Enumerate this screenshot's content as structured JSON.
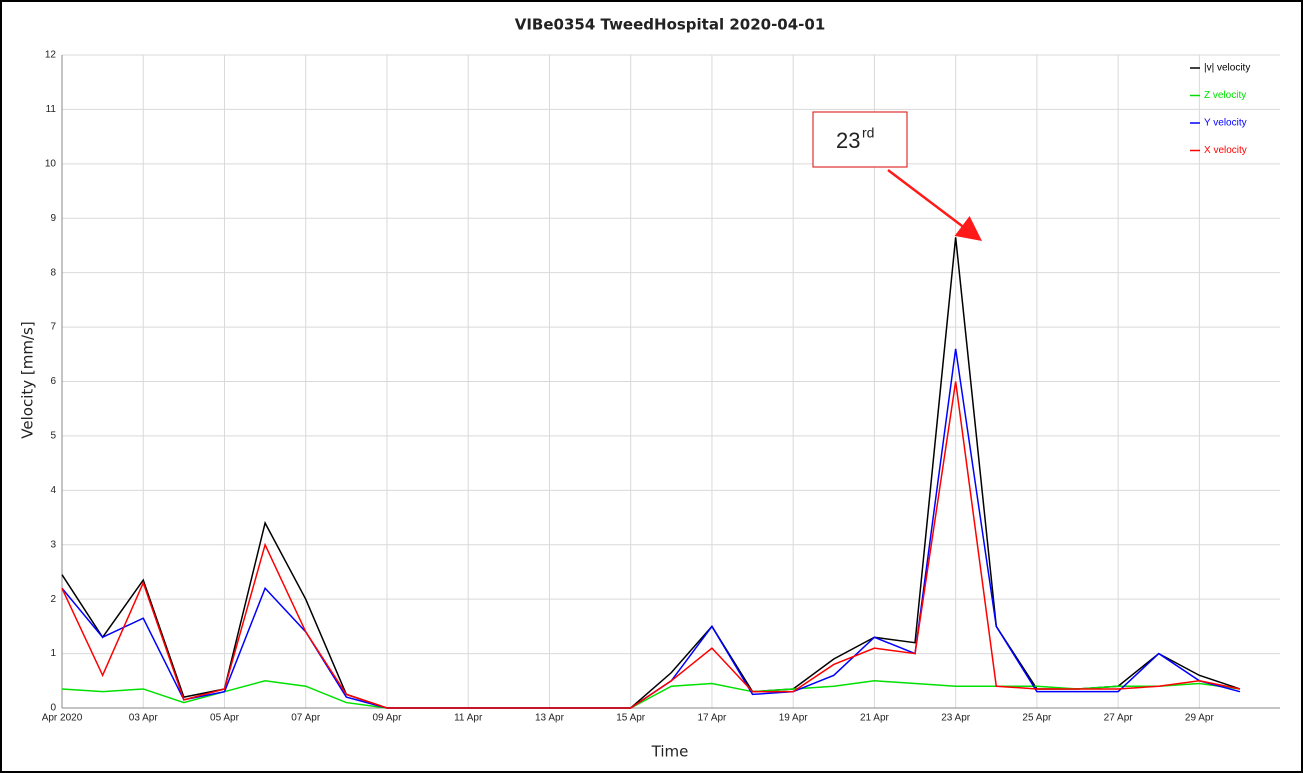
{
  "chart_data": {
    "type": "line",
    "title": "VIBe0354 TweedHospital 2020-04-01",
    "xlabel": "Time",
    "ylabel": "Velocity [mm/s]",
    "x": [
      "2020-04-01",
      "2020-04-02",
      "2020-04-03",
      "2020-04-04",
      "2020-04-05",
      "2020-04-06",
      "2020-04-07",
      "2020-04-08",
      "2020-04-09",
      "2020-04-10",
      "2020-04-11",
      "2020-04-12",
      "2020-04-13",
      "2020-04-14",
      "2020-04-15",
      "2020-04-16",
      "2020-04-17",
      "2020-04-18",
      "2020-04-19",
      "2020-04-20",
      "2020-04-21",
      "2020-04-22",
      "2020-04-23",
      "2020-04-24",
      "2020-04-25",
      "2020-04-26",
      "2020-04-27",
      "2020-04-28",
      "2020-04-29",
      "2020-04-30"
    ],
    "series": [
      {
        "name": "|v| velocity",
        "color": "#000000",
        "values": [
          2.45,
          1.3,
          2.35,
          0.2,
          0.35,
          3.4,
          2.0,
          0.25,
          0,
          0,
          0,
          0,
          0,
          0,
          0,
          0.65,
          1.5,
          0.3,
          0.35,
          0.9,
          1.3,
          1.2,
          8.65,
          1.5,
          0.35,
          0.35,
          0.4,
          1.0,
          0.6,
          0.35
        ]
      },
      {
        "name": "Z velocity",
        "color": "#00e000",
        "values": [
          0.35,
          0.3,
          0.35,
          0.1,
          0.3,
          0.5,
          0.4,
          0.1,
          0,
          0,
          0,
          0,
          0,
          0,
          0,
          0.4,
          0.45,
          0.3,
          0.35,
          0.4,
          0.5,
          0.45,
          0.4,
          0.4,
          0.4,
          0.35,
          0.4,
          0.4,
          0.45,
          0.35
        ]
      },
      {
        "name": "Y velocity",
        "color": "#0000ff",
        "values": [
          2.2,
          1.3,
          1.65,
          0.15,
          0.3,
          2.2,
          1.4,
          0.2,
          0,
          0,
          0,
          0,
          0,
          0,
          0,
          0.5,
          1.5,
          0.25,
          0.3,
          0.6,
          1.3,
          1.0,
          6.6,
          1.5,
          0.3,
          0.3,
          0.3,
          1.0,
          0.5,
          0.3
        ]
      },
      {
        "name": "X velocity",
        "color": "#ff0000",
        "values": [
          2.2,
          0.6,
          2.3,
          0.15,
          0.35,
          3.0,
          1.4,
          0.25,
          0,
          0,
          0,
          0,
          0,
          0,
          0,
          0.5,
          1.1,
          0.3,
          0.3,
          0.8,
          1.1,
          1.0,
          6.0,
          0.4,
          0.35,
          0.35,
          0.35,
          0.4,
          0.5,
          0.35
        ]
      }
    ],
    "xlim": [
      "2020-04-01",
      "2020-04-30"
    ],
    "xticks": [
      {
        "value": "2020-04-01",
        "label": "Apr 2020"
      },
      {
        "value": "2020-04-03",
        "label": "03 Apr"
      },
      {
        "value": "2020-04-05",
        "label": "05 Apr"
      },
      {
        "value": "2020-04-07",
        "label": "07 Apr"
      },
      {
        "value": "2020-04-09",
        "label": "09 Apr"
      },
      {
        "value": "2020-04-11",
        "label": "11 Apr"
      },
      {
        "value": "2020-04-13",
        "label": "13 Apr"
      },
      {
        "value": "2020-04-15",
        "label": "15 Apr"
      },
      {
        "value": "2020-04-17",
        "label": "17 Apr"
      },
      {
        "value": "2020-04-19",
        "label": "19 Apr"
      },
      {
        "value": "2020-04-21",
        "label": "21 Apr"
      },
      {
        "value": "2020-04-23",
        "label": "23 Apr"
      },
      {
        "value": "2020-04-25",
        "label": "25 Apr"
      },
      {
        "value": "2020-04-27",
        "label": "27 Apr"
      },
      {
        "value": "2020-04-29",
        "label": "29 Apr"
      }
    ],
    "ylim": [
      0,
      12
    ],
    "yticks": [
      0,
      1,
      2,
      3,
      4,
      5,
      6,
      7,
      8,
      9,
      10,
      11,
      12
    ],
    "grid": true,
    "legend": "upper right",
    "annotation": {
      "text": "23",
      "superscript": "rd"
    }
  }
}
